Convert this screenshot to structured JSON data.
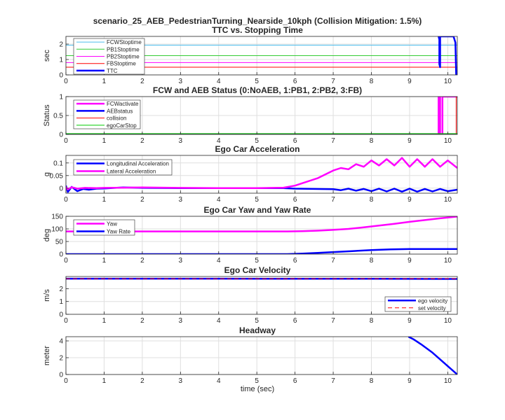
{
  "figure": {
    "title_line1": "scenario_25_AEB_PedestrianTurning_Nearside_10kph (Collision Mitigation: 1.5%)",
    "background": "#ffffff"
  },
  "chart_data": [
    {
      "type": "line",
      "title": "TTC vs. Stopping Time",
      "xlabel": "",
      "ylabel": "sec",
      "xlim": [
        0,
        10.25
      ],
      "ylim": [
        0,
        2.5
      ],
      "xticks": [
        0,
        1,
        2,
        3,
        4,
        5,
        6,
        7,
        8,
        9,
        10
      ],
      "yticks": [
        0,
        1,
        2
      ],
      "grid": true,
      "legend_position": "top-left",
      "series": [
        {
          "name": "FCWStoptime",
          "color": "#4dbeee",
          "width": 1,
          "x": [
            0,
            10.25
          ],
          "y": [
            1.93,
            1.93
          ]
        },
        {
          "name": "PB1Stoptime",
          "color": "#33cc33",
          "width": 1,
          "x": [
            0,
            10.25
          ],
          "y": [
            1.25,
            1.25
          ]
        },
        {
          "name": "PB2Stoptime",
          "color": "#ff00ff",
          "width": 1,
          "x": [
            0,
            10.25
          ],
          "y": [
            0.8,
            0.8
          ]
        },
        {
          "name": "FBStoptime",
          "color": "#ff0000",
          "width": 1,
          "x": [
            0,
            10.25
          ],
          "y": [
            0.5,
            0.5
          ]
        },
        {
          "name": "TTC",
          "color": "#0000ff",
          "width": 2.5,
          "x": [
            9.76,
            9.78,
            9.78,
            9.8,
            9.8,
            10.0,
            10.05,
            10.08,
            10.12,
            10.15,
            10.2,
            10.22
          ],
          "y": [
            2.5,
            2.3,
            0.7,
            0.5,
            2.5,
            2.5,
            2.5,
            2.5,
            2.5,
            2.5,
            2.1,
            0.0
          ]
        }
      ]
    },
    {
      "type": "line",
      "title": "FCW and AEB Status (0:NoAEB, 1:PB1, 2:PB2, 3:FB)",
      "xlabel": "",
      "ylabel": "Status",
      "xlim": [
        0,
        10.25
      ],
      "ylim": [
        0,
        1
      ],
      "xticks": [
        0,
        1,
        2,
        3,
        4,
        5,
        6,
        7,
        8,
        9,
        10
      ],
      "yticks": [
        0,
        0.5,
        1
      ],
      "grid": true,
      "legend_position": "top-left",
      "series": [
        {
          "name": "FCWactivate",
          "color": "#ff00ff",
          "width": 2.5,
          "x": [
            0,
            9.76,
            9.76,
            9.8,
            9.8,
            9.86,
            9.86,
            10.25
          ],
          "y": [
            0,
            0,
            1,
            1,
            0,
            0,
            1,
            1
          ]
        },
        {
          "name": "AEBstatus",
          "color": "#0000ff",
          "width": 2.5,
          "x": [
            0,
            10.25
          ],
          "y": [
            0,
            0
          ]
        },
        {
          "name": "collision",
          "color": "#ff0000",
          "width": 1,
          "x": [
            0,
            10.22,
            10.22,
            10.25
          ],
          "y": [
            0,
            0,
            1,
            1
          ]
        },
        {
          "name": "egoCarStop",
          "color": "#00cc00",
          "width": 1,
          "x": [
            0,
            10.25
          ],
          "y": [
            0.02,
            0.02
          ]
        }
      ]
    },
    {
      "type": "line",
      "title": "Ego Car Acceleration",
      "xlabel": "",
      "ylabel": "g",
      "xlim": [
        0,
        10.25
      ],
      "ylim": [
        -0.02,
        0.13
      ],
      "xticks": [
        0,
        1,
        2,
        3,
        4,
        5,
        6,
        7,
        8,
        9,
        10
      ],
      "yticks": [
        0,
        0.05,
        0.1
      ],
      "grid": true,
      "legend_position": "top-left",
      "series": [
        {
          "name": "Longitudinal Acceleration",
          "color": "#0000ff",
          "width": 2.5,
          "x": [
            0,
            0.05,
            0.15,
            0.3,
            0.45,
            0.6,
            0.8,
            1.0,
            1.5,
            2.0,
            3.0,
            4.0,
            5.0,
            5.7,
            6.0,
            6.5,
            7.0,
            7.2,
            7.4,
            7.6,
            7.8,
            8.0,
            8.2,
            8.4,
            8.6,
            8.8,
            9.0,
            9.2,
            9.4,
            9.6,
            9.8,
            10.0,
            10.25
          ],
          "y": [
            0.01,
            -0.015,
            0.005,
            -0.012,
            -0.003,
            -0.006,
            -0.002,
            -0.001,
            0.003,
            0.001,
            0.0,
            0.0,
            0.0,
            0.0,
            -0.002,
            -0.003,
            -0.004,
            -0.008,
            -0.002,
            -0.01,
            -0.003,
            -0.012,
            -0.002,
            -0.013,
            -0.002,
            -0.014,
            -0.002,
            -0.014,
            -0.003,
            -0.013,
            -0.003,
            -0.012,
            -0.006
          ]
        },
        {
          "name": "Lateral Acceleration",
          "color": "#ff00ff",
          "width": 2.5,
          "x": [
            0,
            0.05,
            0.15,
            0.3,
            0.5,
            0.8,
            1.0,
            1.5,
            2.0,
            3.0,
            4.0,
            5.0,
            5.7,
            6.0,
            6.2,
            6.4,
            6.6,
            6.8,
            7.0,
            7.2,
            7.4,
            7.6,
            7.8,
            8.0,
            8.2,
            8.4,
            8.6,
            8.8,
            9.0,
            9.2,
            9.4,
            9.6,
            9.8,
            10.0,
            10.25
          ],
          "y": [
            0.005,
            -0.005,
            0.004,
            -0.002,
            0.001,
            0.0,
            0.001,
            0.002,
            0.003,
            0.001,
            0.0,
            0.0,
            0.002,
            0.01,
            0.02,
            0.03,
            0.04,
            0.055,
            0.07,
            0.08,
            0.075,
            0.095,
            0.085,
            0.11,
            0.09,
            0.115,
            0.09,
            0.12,
            0.085,
            0.115,
            0.085,
            0.115,
            0.085,
            0.11,
            0.08
          ]
        }
      ]
    },
    {
      "type": "line",
      "title": "Ego Car Yaw and Yaw Rate",
      "xlabel": "",
      "ylabel": "deg",
      "xlim": [
        0,
        10.25
      ],
      "ylim": [
        0,
        150
      ],
      "xticks": [
        0,
        1,
        2,
        3,
        4,
        5,
        6,
        7,
        8,
        9,
        10
      ],
      "yticks": [
        0,
        50,
        100,
        150
      ],
      "grid": true,
      "legend_position": "top-left",
      "series": [
        {
          "name": "Yaw",
          "color": "#ff00ff",
          "width": 2.5,
          "x": [
            0,
            1,
            2,
            3,
            4,
            5,
            5.8,
            6.2,
            6.6,
            7.0,
            7.4,
            7.8,
            8.2,
            8.6,
            9.0,
            9.4,
            9.8,
            10.25
          ],
          "y": [
            90,
            90,
            90,
            90,
            90,
            90,
            90,
            91,
            93,
            96,
            100,
            106,
            113,
            120,
            128,
            135,
            142,
            149
          ]
        },
        {
          "name": "Yaw Rate",
          "color": "#0000ff",
          "width": 2.5,
          "x": [
            0,
            1,
            2,
            3,
            4,
            5,
            5.8,
            6.2,
            6.6,
            7.0,
            7.5,
            8.0,
            8.5,
            9.0,
            9.5,
            10.0,
            10.25
          ],
          "y": [
            0,
            0,
            0,
            0,
            0,
            0,
            0,
            2,
            5,
            8,
            12,
            16,
            19,
            20,
            20,
            20,
            20
          ]
        }
      ]
    },
    {
      "type": "line",
      "title": "Ego Car Velocity",
      "xlabel": "",
      "ylabel": "m/s",
      "xlim": [
        0,
        10.25
      ],
      "ylim": [
        0,
        2.95
      ],
      "xticks": [
        0,
        1,
        2,
        3,
        4,
        5,
        6,
        7,
        8,
        9,
        10
      ],
      "yticks": [
        0,
        1,
        2
      ],
      "grid": true,
      "legend_position": "bottom-right",
      "series": [
        {
          "name": "ego velocity",
          "color": "#0000ff",
          "width": 2.5,
          "x": [
            0,
            2,
            4,
            6,
            8,
            10,
            10.25
          ],
          "y": [
            2.78,
            2.78,
            2.78,
            2.77,
            2.77,
            2.76,
            2.76
          ]
        },
        {
          "name": "set velocity",
          "color": "#ff0000",
          "width": 1,
          "dash": true,
          "x": [
            0,
            10.25
          ],
          "y": [
            2.78,
            2.78
          ]
        }
      ]
    },
    {
      "type": "line",
      "title": "Headway",
      "xlabel": "time (sec)",
      "ylabel": "meter",
      "xlim": [
        0,
        10.25
      ],
      "ylim": [
        0,
        4.5
      ],
      "xticks": [
        0,
        1,
        2,
        3,
        4,
        5,
        6,
        7,
        8,
        9,
        10
      ],
      "yticks": [
        0,
        2,
        4
      ],
      "grid": true,
      "series": [
        {
          "name": "headway",
          "color": "#0000ff",
          "width": 2.5,
          "x": [
            8.97,
            9.1,
            9.3,
            9.6,
            9.9,
            10.25
          ],
          "y": [
            4.5,
            4.2,
            3.6,
            2.6,
            1.4,
            0.0
          ]
        }
      ]
    }
  ]
}
